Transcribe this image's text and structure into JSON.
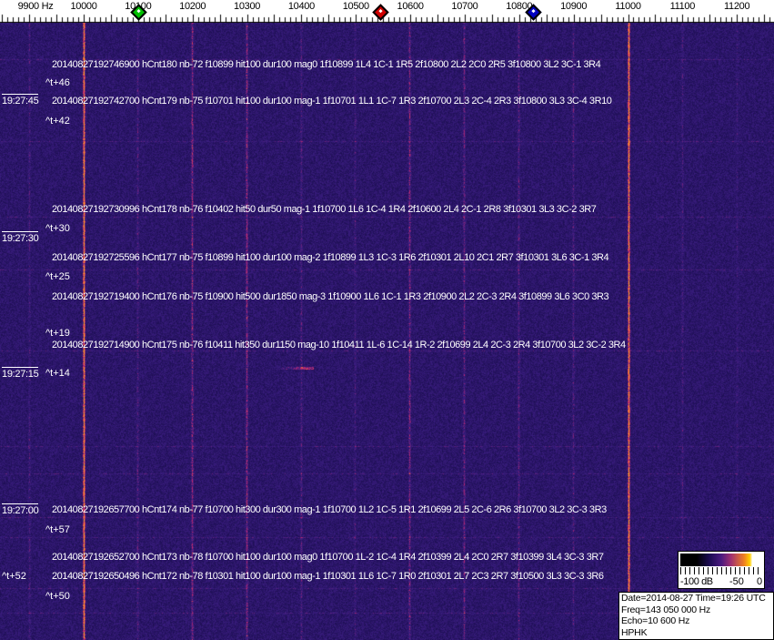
{
  "frequency_scale": {
    "unit_label": "9900 Hz",
    "ticks": [
      "10000",
      "10100",
      "10200",
      "10300",
      "10400",
      "10500",
      "10600",
      "10700",
      "10800",
      "10900",
      "11000",
      "11100",
      "11200"
    ],
    "markers": [
      {
        "name": "green-marker",
        "color": "#00c000",
        "freq_hz": 10100
      },
      {
        "name": "red-marker",
        "color": "#d00000",
        "freq_hz": 10545
      },
      {
        "name": "blue-marker",
        "color": "#0000c0",
        "freq_hz": 10825
      }
    ]
  },
  "colors": {
    "background": "#2a1870",
    "signal": "#f08030",
    "text": "#ffffff"
  },
  "time_labels": [
    "19:27:45",
    "19:27:30",
    "19:27:15",
    "19:27:00"
  ],
  "time_marks": [
    "^t+46",
    "^t+42",
    "^t+30",
    "^t+25",
    "^t+19",
    "^t+14",
    "^t+57",
    "^t+52",
    "^t+50"
  ],
  "detections": [
    "20140827192746900 hCnt180 nb-72 f10899 hit100 dur100 mag0 1f10899 1L4 1C-1 1R5 2f10800 2L2 2C0 2R5 3f10800 3L2 3C-1 3R4",
    "20140827192742700 hCnt179 nb-75 f10701 hit100 dur100 mag-1 1f10701 1L1 1C-7 1R3 2f10700 2L3 2C-4 2R3 3f10800 3L3 3C-4 3R10",
    "20140827192730996 hCnt178 nb-76 f10402 hit50 dur50 mag-1 1f10700 1L6 1C-4 1R4 2f10600 2L4 2C-1 2R8 3f10301 3L3 3C-2 3R7",
    "20140827192725596 hCnt177 nb-75 f10899 hit100 dur100 mag-2 1f10899 1L3 1C-3 1R6 2f10301 2L10 2C1 2R7 3f10301 3L6 3C-1 3R4",
    "20140827192719400 hCnt176 nb-75 f10900 hit500 dur1850 mag-3 1f10900 1L6 1C-1 1R3 2f10900 2L2 2C-3 2R4 3f10899 3L6 3C0 3R3",
    "20140827192714900 hCnt175 nb-76 f10411 hit350 dur1150 mag-10 1f10411 1L-6 1C-14 1R-2 2f10699 2L4 2C-3 2R4 3f10700 3L2 3C-2 3R4",
    "20140827192657700 hCnt174 nb-77 f10700 hit300 dur300 mag-1 1f10700 1L2 1C-5 1R1 2f10699 2L5 2C-6 2R6 3f10700 3L2 3C-3 3R3",
    "20140827192652700 hCnt173 nb-78 f10700 hit100 dur100 mag0 1f10700 1L-2 1C-4 1R4 2f10399 2L4 2C0 2R7 3f10399 3L4 3C-3 3R7",
    "20140827192650496 hCnt172 nb-78 f10301 hit100 dur100 mag-1 1f10301 1L6 1C-7 1R0 2f10301 2L7 2C3 2R7 3f10500 3L3 3C-3 3R6"
  ],
  "colorbar": {
    "labels": [
      "-100 dB",
      "-50",
      "0"
    ]
  },
  "info": {
    "line1": "Date=2014-08-27 Time=19:26 UTC",
    "line2": "Freq=143 050 000 Hz",
    "line3": "Echo=10 600 Hz",
    "line4": "HPHK"
  }
}
